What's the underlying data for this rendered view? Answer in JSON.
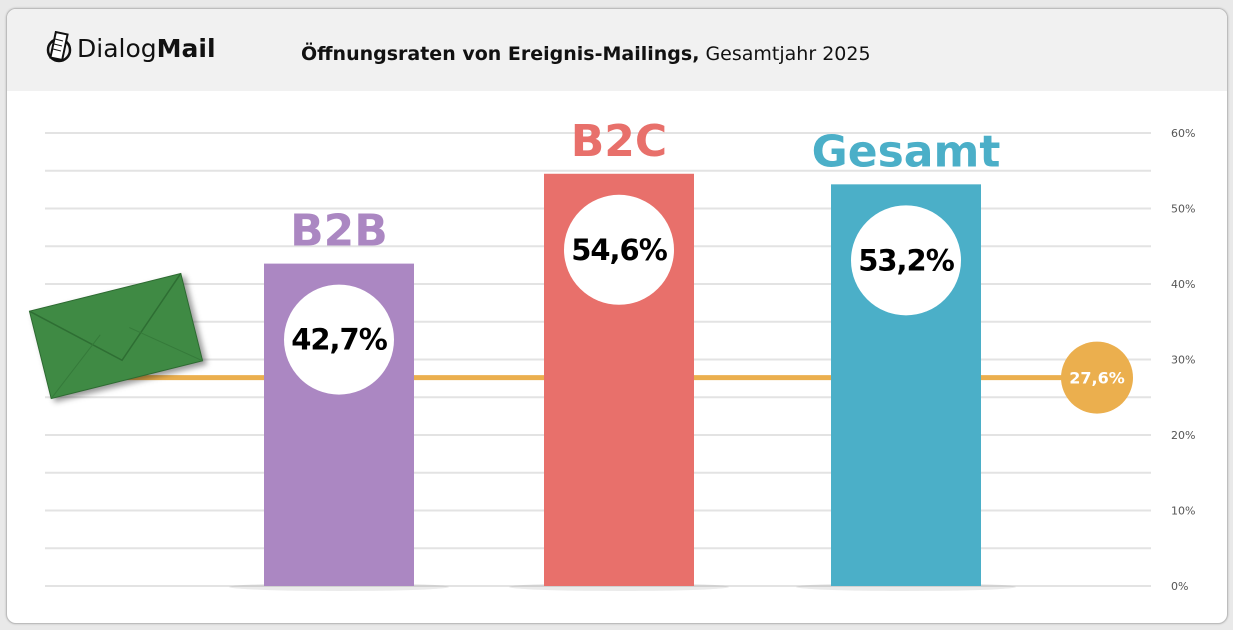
{
  "header": {
    "logo_regular": "Dialog",
    "logo_bold": "Mail",
    "title_bold": "Öffnungsraten von Ereignis-Mailings,",
    "title_regular": " Gesamtjahr 2025"
  },
  "chart_data": {
    "type": "bar",
    "categories": [
      "B2B",
      "B2C",
      "Gesamt"
    ],
    "values": [
      42.7,
      54.6,
      53.2
    ],
    "value_labels": [
      "42,7%",
      "54,6%",
      "53,2%"
    ],
    "colors": [
      "#ab87c2",
      "#e8706b",
      "#4bafc8"
    ],
    "reference_line": {
      "value": 27.6,
      "label": "27,6%",
      "color": "#ebaf4e"
    },
    "ylim": [
      0,
      60
    ],
    "yticks": [
      0,
      10,
      20,
      30,
      40,
      50,
      60
    ],
    "ytick_labels": [
      "0%",
      "10%",
      "20%",
      "30%",
      "40%",
      "50%",
      "60%"
    ],
    "grid": true,
    "axis_position": "right",
    "decoration_icon": "envelope-icon"
  }
}
